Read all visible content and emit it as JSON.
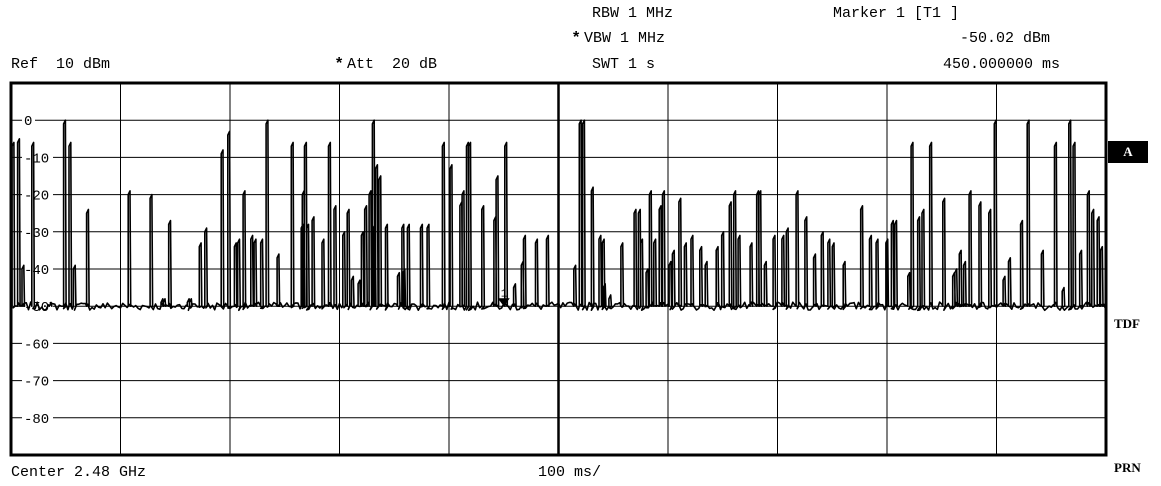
{
  "header": {
    "rbw": "RBW 1 MHz",
    "vbw_star": "*",
    "vbw": "VBW 1 MHz",
    "swt": "SWT 1 s",
    "ref": "Ref  10 dBm",
    "att_star": "*",
    "att": "Att  20 dB",
    "marker_title": "Marker 1 [T1 ]",
    "marker_level": "-50.02 dBm",
    "marker_time": "450.000000 ms"
  },
  "side": {
    "trace": "A",
    "tdf": "TDF",
    "prn": "PRN"
  },
  "footer": {
    "center": "Center 2.48 GHz",
    "scale": "100 ms/"
  },
  "chart_data": {
    "type": "line",
    "x_unit": "ms",
    "y_unit": "dBm",
    "xlim": [
      0,
      1000
    ],
    "ylim": [
      -90,
      10
    ],
    "x_divisions": 10,
    "y_divisions": 10,
    "y_tick_labels": [
      "0",
      "-10",
      "-20",
      "-30",
      "-40",
      "-50",
      "-60",
      "-70",
      "-80"
    ],
    "y_ticks": [
      0,
      -10,
      -20,
      -30,
      -40,
      -50,
      -60,
      -70,
      -80
    ],
    "noise_floor": -50,
    "marker": {
      "label": "1",
      "x": 450,
      "y": -50.02
    },
    "series": [
      {
        "peaks": [
          [
            1,
            -7
          ],
          [
            6,
            -6
          ],
          [
            10,
            -40
          ],
          [
            19,
            -7
          ],
          [
            35,
            -50
          ],
          [
            48,
            -1
          ],
          [
            53,
            -7
          ],
          [
            57,
            -40
          ],
          [
            69,
            -25
          ],
          [
            107,
            -20
          ],
          [
            127,
            -21
          ],
          [
            137,
            -49
          ],
          [
            139,
            -49
          ],
          [
            144,
            -28
          ],
          [
            161,
            -49
          ],
          [
            163,
            -49
          ],
          [
            172,
            -34
          ],
          [
            177,
            -30
          ],
          [
            192,
            -9
          ],
          [
            198,
            -4
          ],
          [
            204,
            -34
          ],
          [
            207,
            -33
          ],
          [
            212,
            -20
          ],
          [
            219,
            -32
          ],
          [
            222,
            -33
          ],
          [
            228,
            -33
          ],
          [
            233,
            -1
          ],
          [
            243,
            -37
          ],
          [
            256,
            -7
          ],
          [
            265,
            -29
          ],
          [
            266,
            -20
          ],
          [
            268,
            -7
          ],
          [
            270,
            -29
          ],
          [
            275,
            -27
          ],
          [
            284,
            -33
          ],
          [
            290,
            -7
          ],
          [
            295,
            -24
          ],
          [
            303,
            -31
          ],
          [
            307,
            -25
          ],
          [
            311,
            -43
          ],
          [
            317,
            -44
          ],
          [
            320,
            -31
          ],
          [
            323,
            -24
          ],
          [
            327,
            -20
          ],
          [
            330,
            -1
          ],
          [
            331,
            -29
          ],
          [
            333,
            -13
          ],
          [
            336,
            -16
          ],
          [
            342,
            -29
          ],
          [
            353,
            -42
          ],
          [
            357,
            -29
          ],
          [
            358,
            -41
          ],
          [
            362,
            -29
          ],
          [
            374,
            -29
          ],
          [
            380,
            -29
          ],
          [
            394,
            -7
          ],
          [
            401,
            -13
          ],
          [
            410,
            -23
          ],
          [
            412,
            -20
          ],
          [
            416,
            -7
          ],
          [
            418,
            -7
          ],
          [
            430,
            -24
          ],
          [
            441,
            -27
          ],
          [
            443,
            -16
          ],
          [
            451,
            -7
          ],
          [
            459,
            -45
          ],
          [
            466,
            -39
          ],
          [
            468,
            -32
          ],
          [
            479,
            -33
          ],
          [
            489,
            -32
          ],
          [
            514,
            -40
          ],
          [
            519,
            -1
          ],
          [
            522,
            -1
          ],
          [
            530,
            -19
          ],
          [
            537,
            -32
          ],
          [
            540,
            -33
          ],
          [
            541,
            -45
          ],
          [
            546,
            -48
          ],
          [
            557,
            -34
          ],
          [
            569,
            -25
          ],
          [
            573,
            -25
          ],
          [
            575,
            -33
          ],
          [
            580,
            -41
          ],
          [
            583,
            -20
          ],
          [
            587,
            -33
          ],
          [
            592,
            -24
          ],
          [
            595,
            -20
          ],
          [
            601,
            -39
          ],
          [
            604,
            -36
          ],
          [
            610,
            -22
          ],
          [
            615,
            -34
          ],
          [
            621,
            -32
          ],
          [
            629,
            -35
          ],
          [
            634,
            -39
          ],
          [
            644,
            -35
          ],
          [
            649,
            -31
          ],
          [
            656,
            -23
          ],
          [
            660,
            -20
          ],
          [
            664,
            -32
          ],
          [
            675,
            -34
          ],
          [
            681,
            -20
          ],
          [
            683,
            -20
          ],
          [
            688,
            -39
          ],
          [
            696,
            -32
          ],
          [
            704,
            -32
          ],
          [
            708,
            -30
          ],
          [
            717,
            -20
          ],
          [
            725,
            -27
          ],
          [
            733,
            -37
          ],
          [
            740,
            -31
          ],
          [
            746,
            -33
          ],
          [
            750,
            -34
          ],
          [
            760,
            -39
          ],
          [
            776,
            -24
          ],
          [
            784,
            -32
          ],
          [
            790,
            -33
          ],
          [
            799,
            -33
          ],
          [
            804,
            -28
          ],
          [
            807,
            -28
          ],
          [
            819,
            -42
          ],
          [
            822,
            -7
          ],
          [
            828,
            -27
          ],
          [
            832,
            -25
          ],
          [
            839,
            -7
          ],
          [
            851,
            -22
          ],
          [
            860,
            -42
          ],
          [
            862,
            -41
          ],
          [
            866,
            -36
          ],
          [
            870,
            -39
          ],
          [
            875,
            -20
          ],
          [
            884,
            -23
          ],
          [
            893,
            -25
          ],
          [
            898,
            -1
          ],
          [
            906,
            -43
          ],
          [
            911,
            -38
          ],
          [
            922,
            -28
          ],
          [
            928,
            -1
          ],
          [
            941,
            -36
          ],
          [
            953,
            -7
          ],
          [
            960,
            -46
          ],
          [
            966,
            -1
          ],
          [
            970,
            -7
          ],
          [
            976,
            -36
          ],
          [
            983,
            -20
          ],
          [
            987,
            -25
          ],
          [
            992,
            -27
          ],
          [
            995,
            -35
          ]
        ]
      }
    ]
  }
}
